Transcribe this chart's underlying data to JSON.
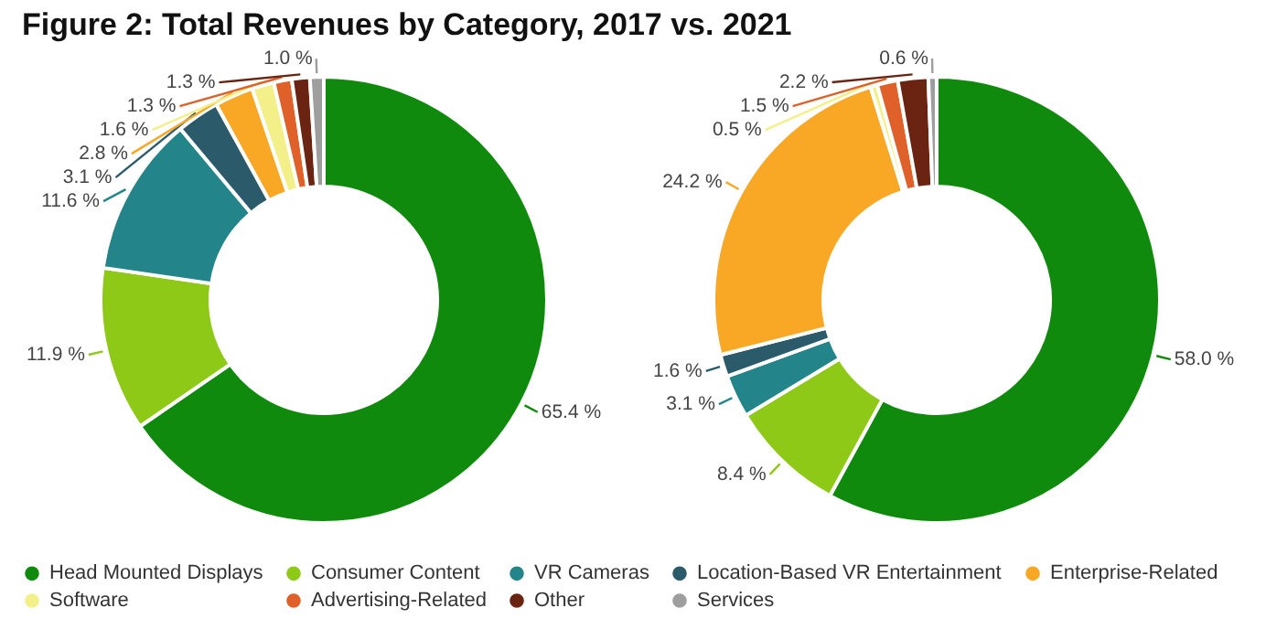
{
  "chart_data": {
    "type": "donut",
    "title": "Figure 2: Total Revenues by Category, 2017 vs. 2021",
    "legend": "bottom",
    "categories": [
      "Head Mounted Displays",
      "Consumer Content",
      "VR Cameras",
      "Location-Based VR Entertainment",
      "Enterprise-Related",
      "Software",
      "Advertising-Related",
      "Other",
      "Services"
    ],
    "colors": [
      "#0f8a0c",
      "#8fc918",
      "#23858a",
      "#2b5a6b",
      "#f9a825",
      "#f3f08a",
      "#e0602a",
      "#6b2412",
      "#9e9e9e"
    ],
    "series": [
      {
        "values": [
          65.4,
          11.9,
          11.6,
          3.1,
          2.8,
          1.6,
          1.3,
          1.3,
          1.0
        ],
        "value_labels": [
          "65.4 %",
          "11.9 %",
          "11.6 %",
          "3.1 %",
          "2.8 %",
          "1.6 %",
          "1.3 %",
          "1.3 %",
          "1.0 %"
        ]
      },
      {
        "values": [
          58.0,
          8.4,
          3.1,
          1.6,
          24.2,
          0.5,
          1.5,
          2.2,
          0.6
        ],
        "value_labels": [
          "58.0 %",
          "8.4 %",
          "3.1 %",
          "1.6 %",
          "24.2 %",
          "0.5 %",
          "1.5 %",
          "2.2 %",
          "0.6 %"
        ]
      }
    ]
  }
}
